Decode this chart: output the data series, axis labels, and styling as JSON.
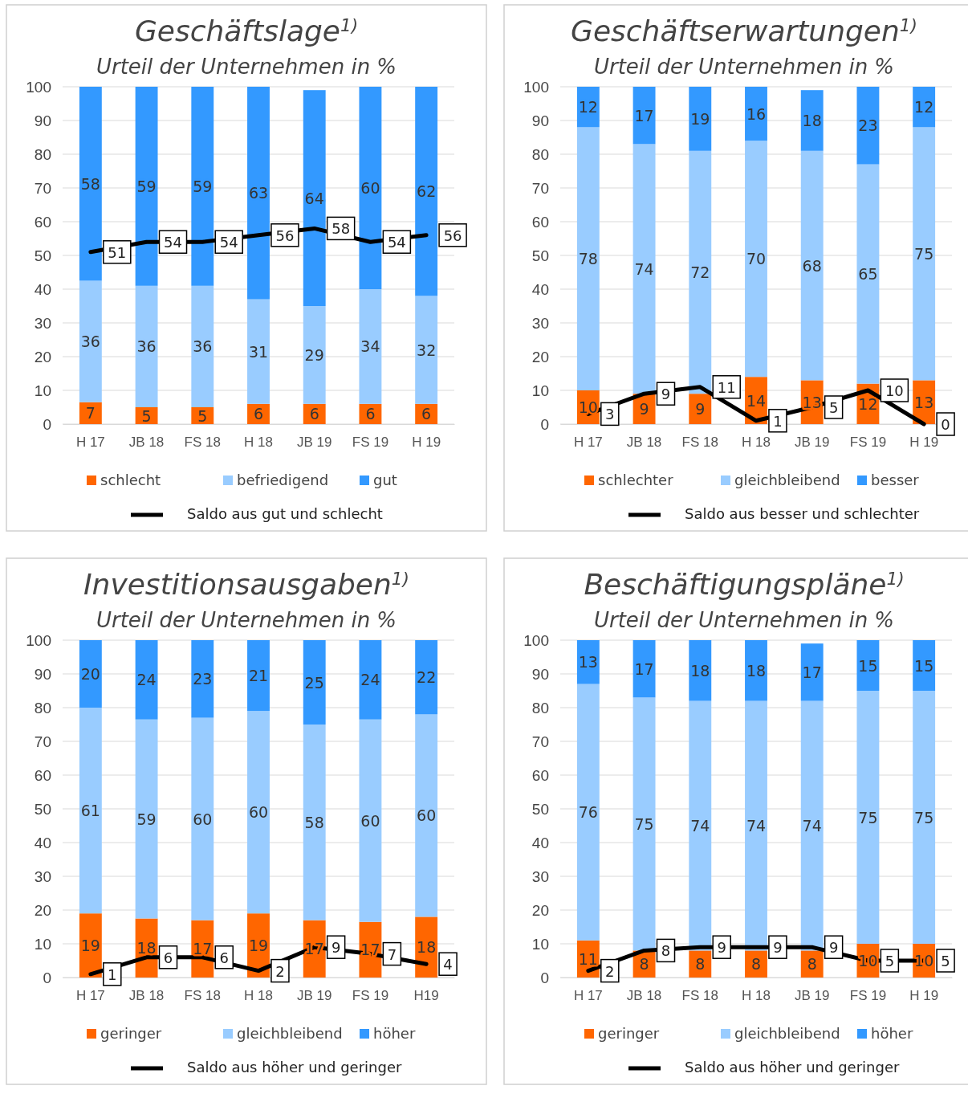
{
  "chart_data": [
    {
      "type": "bar",
      "stacked": true,
      "title": "Geschäftslage$^{1)}$",
      "subtitle": "Urteil der Unternehmen in %",
      "categories": [
        "H 17",
        "JB 18",
        "FS 18",
        "H 18",
        "JB 19",
        "FS 19",
        "H 19"
      ],
      "ylim": [
        0,
        100
      ],
      "yticks": [
        0,
        10,
        20,
        30,
        40,
        50,
        60,
        70,
        80,
        90,
        100
      ],
      "grid": "y",
      "legend": "bottom",
      "data_labels": true,
      "series": [
        {
          "name": "schlecht",
          "color": "#ff6600",
          "values": [
            6.5,
            5,
            5,
            6,
            6,
            6,
            6
          ],
          "value_labels": [
            "7",
            "5",
            "5",
            "6",
            "6",
            "6",
            "6"
          ]
        },
        {
          "name": "befriedigend",
          "color": "#99ccff",
          "values": [
            36,
            36,
            36,
            31,
            29,
            34,
            32
          ],
          "value_labels": [
            "36",
            "36",
            "36",
            "31",
            "29",
            "34",
            "32"
          ]
        },
        {
          "name": "gut",
          "color": "#3399ff",
          "values": [
            57.5,
            59,
            59,
            63,
            64,
            60,
            62
          ],
          "value_labels": [
            "58",
            "59",
            "59",
            "63",
            "64",
            "60",
            "62"
          ]
        },
        {
          "name": "Saldo aus gut und schlecht",
          "type": "line",
          "color": "#000000",
          "marker": "none",
          "values": [
            51,
            54,
            54,
            56,
            58,
            54,
            56
          ],
          "value_labels": [
            "51",
            "54",
            "54",
            "56",
            "58",
            "54",
            "56"
          ]
        }
      ]
    },
    {
      "type": "bar",
      "stacked": true,
      "title": "Geschäftserwartungen$^{1)}$",
      "subtitle": "Urteil der Unternehmen in %",
      "categories": [
        "H 17",
        "JB 18",
        "FS 18",
        "H 18",
        "JB 19",
        "FS 19",
        "H 19"
      ],
      "ylim": [
        0,
        100
      ],
      "yticks": [
        0,
        10,
        20,
        30,
        40,
        50,
        60,
        70,
        80,
        90,
        100
      ],
      "grid": "y",
      "legend": "bottom",
      "data_labels": true,
      "series": [
        {
          "name": "schlechter",
          "color": "#ff6600",
          "values": [
            10,
            9,
            9,
            14,
            13,
            12,
            13
          ],
          "value_labels": [
            "10",
            "9",
            "9",
            "14",
            "13",
            "12",
            "13"
          ]
        },
        {
          "name": "gleichbleibend",
          "color": "#99ccff",
          "values": [
            78,
            74,
            72,
            70,
            68,
            65,
            75
          ],
          "value_labels": [
            "78",
            "74",
            "72",
            "70",
            "68",
            "65",
            "75"
          ]
        },
        {
          "name": "besser",
          "color": "#3399ff",
          "values": [
            12,
            17,
            19,
            16,
            18,
            23,
            12
          ],
          "value_labels": [
            "12",
            "17",
            "19",
            "16",
            "18",
            "23",
            "12"
          ]
        },
        {
          "name": "Saldo aus besser und schlechter",
          "type": "line",
          "color": "#000000",
          "marker": "none",
          "values": [
            3,
            9,
            11,
            1,
            5,
            10,
            0
          ],
          "value_labels": [
            "3",
            "9",
            "11",
            "1",
            "5",
            "10",
            "0"
          ]
        }
      ]
    },
    {
      "type": "bar",
      "stacked": true,
      "title": "Investitionsausgaben$^{1)}$",
      "subtitle": "Urteil der Unternehmen in %",
      "categories": [
        "H 17",
        "JB 18",
        "FS 18",
        "H 18",
        "JB 19",
        "FS 19",
        "H19"
      ],
      "ylim": [
        0,
        100
      ],
      "yticks": [
        0,
        10,
        20,
        30,
        40,
        50,
        60,
        70,
        80,
        90,
        100
      ],
      "grid": "y",
      "legend": "bottom",
      "data_labels": true,
      "series": [
        {
          "name": "geringer",
          "color": "#ff6600",
          "values": [
            19,
            17.5,
            17,
            19,
            17,
            16.5,
            18
          ],
          "value_labels": [
            "19",
            "18",
            "17",
            "19",
            "17",
            "17",
            "18"
          ]
        },
        {
          "name": "gleichbleibend",
          "color": "#99ccff",
          "values": [
            61,
            59,
            60,
            60,
            58,
            60,
            60
          ],
          "value_labels": [
            "61",
            "59",
            "60",
            "60",
            "58",
            "60",
            "60"
          ]
        },
        {
          "name": "höher",
          "color": "#3399ff",
          "values": [
            20,
            23.5,
            23,
            21,
            25,
            23.5,
            22
          ],
          "value_labels": [
            "20",
            "24",
            "23",
            "21",
            "25",
            "24",
            "22"
          ]
        },
        {
          "name": "Saldo aus höher und geringer",
          "type": "line",
          "color": "#000000",
          "marker": "none",
          "values": [
            1,
            6,
            6,
            2,
            9,
            7,
            4
          ],
          "value_labels": [
            "1",
            "6",
            "6",
            "2",
            "9",
            "7",
            "4"
          ]
        }
      ]
    },
    {
      "type": "bar",
      "stacked": true,
      "title": "Beschäftigungspläne$^{1)}$",
      "subtitle": "Urteil der Unternehmen in %",
      "categories": [
        "H 17",
        "JB 18",
        "FS 18",
        "H 18",
        "JB 19",
        "FS 19",
        "H 19"
      ],
      "ylim": [
        0,
        100
      ],
      "yticks": [
        0,
        10,
        20,
        30,
        40,
        50,
        60,
        70,
        80,
        90,
        100
      ],
      "grid": "y",
      "legend": "bottom",
      "data_labels": true,
      "series": [
        {
          "name": "geringer",
          "color": "#ff6600",
          "values": [
            11,
            8,
            8,
            8,
            8,
            10,
            10
          ],
          "value_labels": [
            "11",
            "8",
            "8",
            "8",
            "8",
            "10",
            "10"
          ]
        },
        {
          "name": "gleichbleibend",
          "color": "#99ccff",
          "values": [
            76,
            75,
            74,
            74,
            74,
            75,
            75
          ],
          "value_labels": [
            "76",
            "75",
            "74",
            "74",
            "74",
            "75",
            "75"
          ]
        },
        {
          "name": "höher",
          "color": "#3399ff",
          "values": [
            13,
            17,
            18,
            18,
            17,
            15,
            15
          ],
          "value_labels": [
            "13",
            "17",
            "18",
            "18",
            "17",
            "15",
            "15"
          ]
        },
        {
          "name": "Saldo aus höher und geringer",
          "type": "line",
          "color": "#000000",
          "marker": "none",
          "values": [
            2,
            8,
            9,
            9,
            9,
            5,
            5
          ],
          "value_labels": [
            "2",
            "8",
            "9",
            "9",
            "9",
            "5",
            "5"
          ]
        }
      ]
    }
  ]
}
